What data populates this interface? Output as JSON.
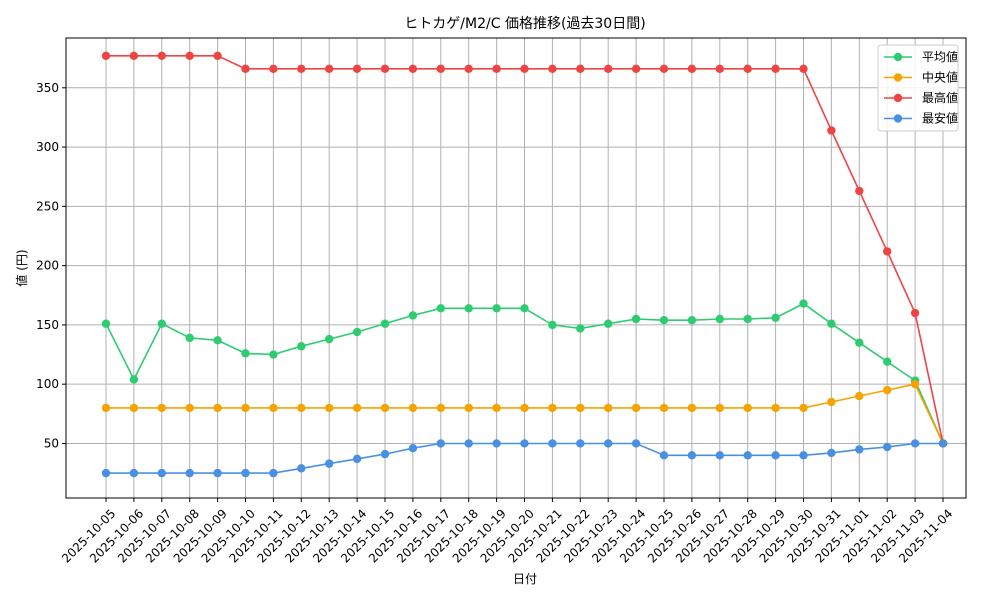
{
  "chart_data": {
    "type": "line",
    "title": "ヒトカゲ/M2/C 価格推移(過去30日間)",
    "xlabel": "日付",
    "ylabel": "値 (円)",
    "ylim": [
      4,
      392
    ],
    "yticks": [
      50,
      100,
      150,
      200,
      250,
      300,
      350
    ],
    "grid": true,
    "legend_position": "top-right",
    "categories": [
      "2025-10-05",
      "2025-10-06",
      "2025-10-07",
      "2025-10-08",
      "2025-10-09",
      "2025-10-10",
      "2025-10-11",
      "2025-10-12",
      "2025-10-13",
      "2025-10-14",
      "2025-10-15",
      "2025-10-16",
      "2025-10-17",
      "2025-10-18",
      "2025-10-19",
      "2025-10-20",
      "2025-10-21",
      "2025-10-22",
      "2025-10-23",
      "2025-10-24",
      "2025-10-25",
      "2025-10-26",
      "2025-10-27",
      "2025-10-28",
      "2025-10-29",
      "2025-10-30",
      "2025-10-31",
      "2025-11-01",
      "2025-11-02",
      "2025-11-03",
      "2025-11-04"
    ],
    "series": [
      {
        "name": "平均値",
        "color": "#2ecc71",
        "values": [
          151,
          104,
          151,
          139,
          137,
          126,
          125,
          132,
          138,
          144,
          151,
          158,
          164,
          164,
          164,
          164,
          150,
          147,
          151,
          155,
          154,
          154,
          155,
          155,
          156,
          168,
          151,
          135,
          119,
          103,
          50
        ]
      },
      {
        "name": "中央値",
        "color": "#f5a300",
        "values": [
          80,
          80,
          80,
          80,
          80,
          80,
          80,
          80,
          80,
          80,
          80,
          80,
          80,
          80,
          80,
          80,
          80,
          80,
          80,
          80,
          80,
          80,
          80,
          80,
          80,
          80,
          85,
          90,
          95,
          100,
          50
        ]
      },
      {
        "name": "最高値",
        "color": "#ef4444",
        "values": [
          377,
          377,
          377,
          377,
          377,
          366,
          366,
          366,
          366,
          366,
          366,
          366,
          366,
          366,
          366,
          366,
          366,
          366,
          366,
          366,
          366,
          366,
          366,
          366,
          366,
          366,
          314,
          263,
          212,
          160,
          50
        ]
      },
      {
        "name": "最安値",
        "color": "#4a90e2",
        "values": [
          25,
          25,
          25,
          25,
          25,
          25,
          25,
          29,
          33,
          37,
          41,
          46,
          50,
          50,
          50,
          50,
          50,
          50,
          50,
          50,
          40,
          40,
          40,
          40,
          40,
          40,
          42,
          45,
          47,
          50,
          50
        ]
      }
    ]
  }
}
